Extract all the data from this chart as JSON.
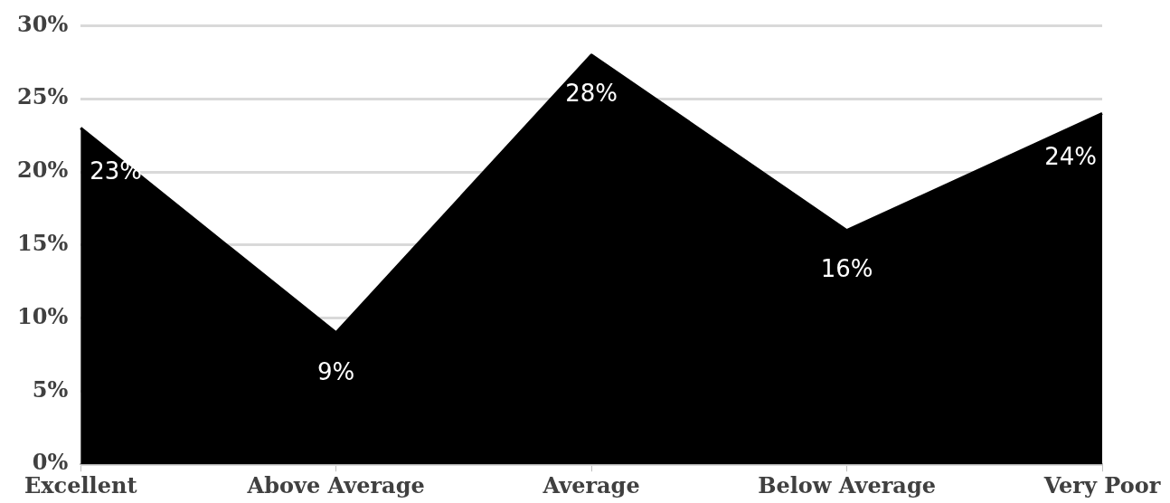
{
  "chart_data": {
    "type": "area",
    "categories": [
      "Excellent",
      "Above Average",
      "Average",
      "Below Average",
      "Very Poor"
    ],
    "series": [
      {
        "color": "#000000",
        "values": [
          23,
          9,
          28,
          16,
          24
        ],
        "value_labels": [
          "23%",
          "9%",
          "28%",
          "16%",
          "24%"
        ]
      }
    ],
    "ylim": [
      0,
      30
    ],
    "yticks": [
      {
        "value": 0,
        "label": "0%"
      },
      {
        "value": 5,
        "label": "5%"
      },
      {
        "value": 10,
        "label": "10%"
      },
      {
        "value": 15,
        "label": "15%"
      },
      {
        "value": 20,
        "label": "20%"
      },
      {
        "value": 25,
        "label": "25%"
      },
      {
        "value": 30,
        "label": "30%"
      }
    ],
    "grid": "y",
    "legend": false
  }
}
